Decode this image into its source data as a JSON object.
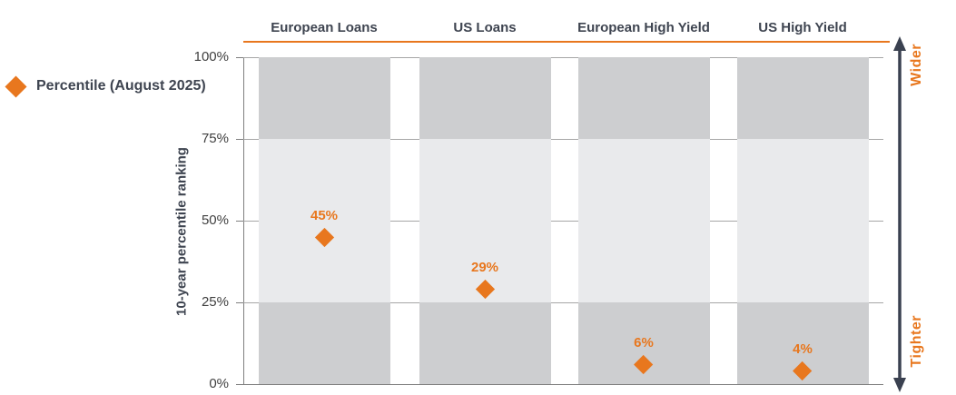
{
  "legend": {
    "label": "Percentile (August 2025)"
  },
  "y_axis": {
    "title": "10-year percentile ranking",
    "ticks": [
      "100%",
      "75%",
      "50%",
      "25%",
      "0%"
    ]
  },
  "columns": [
    "European Loans",
    "US Loans",
    "European High Yield",
    "US High Yield"
  ],
  "annotations": {
    "wider": "Wider",
    "tighter": "Tighter"
  },
  "colors": {
    "accent_orange": "#E8771E",
    "dark_text": "#3E4450",
    "band_dark": "#CDCED0",
    "band_light": "#E9EAEC",
    "gridline": "#A6A6A6",
    "axis": "#7F7F7F",
    "arrow": "#3A4150"
  },
  "chart_data": {
    "type": "scatter",
    "categories": [
      "European Loans",
      "US Loans",
      "European High Yield",
      "US High Yield"
    ],
    "series": [
      {
        "name": "Percentile (August 2025)",
        "values": [
          45,
          29,
          6,
          4
        ],
        "labels": [
          "45%",
          "29%",
          "6%",
          "4%"
        ],
        "marker": "diamond",
        "color": "#E8771E"
      }
    ],
    "title": "",
    "xlabel": "",
    "ylabel": "10-year percentile ranking",
    "ylim": [
      0,
      100
    ],
    "yticks": [
      0,
      25,
      50,
      75,
      100
    ],
    "grid": true,
    "legend_position": "left",
    "bands": [
      {
        "from": 0,
        "to": 25,
        "shade": "dark"
      },
      {
        "from": 25,
        "to": 75,
        "shade": "light"
      },
      {
        "from": 75,
        "to": 100,
        "shade": "dark"
      }
    ],
    "right_axis_annotation": {
      "top": "Wider",
      "bottom": "Tighter"
    }
  }
}
